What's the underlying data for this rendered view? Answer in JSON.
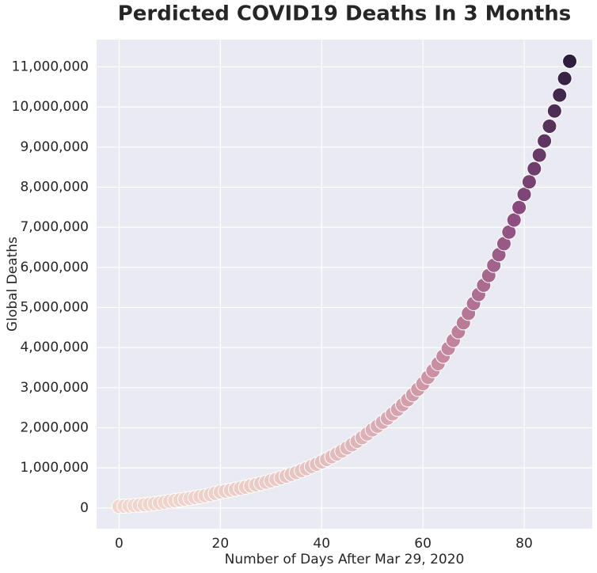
{
  "chart_data": {
    "type": "scatter",
    "title": "Perdicted COVID19 Deaths In 3 Months",
    "x_label": "Number of Days After Mar 29, 2020",
    "y_label": "Global Deaths",
    "x": [
      0,
      1,
      2,
      3,
      4,
      5,
      6,
      7,
      8,
      9,
      10,
      11,
      12,
      13,
      14,
      15,
      16,
      17,
      18,
      19,
      20,
      21,
      22,
      23,
      24,
      25,
      26,
      27,
      28,
      29,
      30,
      31,
      32,
      33,
      34,
      35,
      36,
      37,
      38,
      39,
      40,
      41,
      42,
      43,
      44,
      45,
      46,
      47,
      48,
      49,
      50,
      51,
      52,
      53,
      54,
      55,
      56,
      57,
      58,
      59,
      60,
      61,
      62,
      63,
      64,
      65,
      66,
      67,
      68,
      69,
      70,
      71,
      72,
      73,
      74,
      75,
      76,
      77,
      78,
      79,
      80,
      81,
      82,
      83,
      84,
      85,
      86,
      87,
      88,
      89
    ],
    "values": [
      40000,
      46200,
      53400,
      61700,
      71300,
      82400,
      95300,
      110100,
      127200,
      147100,
      170000,
      185200,
      201700,
      219700,
      239300,
      260700,
      284000,
      309300,
      336900,
      367000,
      400000,
      421800,
      444800,
      469100,
      494600,
      521600,
      550000,
      580000,
      611600,
      645000,
      680000,
      716700,
      755400,
      796200,
      839200,
      884500,
      932300,
      982600,
      1035700,
      1091600,
      1150000,
      1212000,
      1278000,
      1347000,
      1420000,
      1497000,
      1578000,
      1664000,
      1754000,
      1849000,
      1950000,
      2043000,
      2140000,
      2241000,
      2348000,
      2459000,
      2576000,
      2698000,
      2826000,
      2961000,
      3100000,
      3258000,
      3425000,
      3600000,
      3784000,
      3977000,
      4180000,
      4394000,
      4618000,
      4854000,
      5100000,
      5323000,
      5555000,
      5798000,
      6051000,
      6316000,
      6592000,
      6880000,
      7181000,
      7495000,
      7820000,
      8134000,
      8460000,
      8799000,
      9152000,
      9519000,
      9900000,
      10297000,
      10710000,
      11140000
    ],
    "colormap": [
      "#f0d6cd",
      "#c88aa0",
      "#8a4a7f",
      "#2d1e3e"
    ],
    "xlim": [
      -4.45,
      93.45
    ],
    "ylim": [
      -515000,
      11680000
    ],
    "xticks": [
      0,
      20,
      40,
      60,
      80
    ],
    "yticks": [
      0,
      {
        "value": 1000000,
        "label": "1,000,000"
      },
      {
        "value": 2000000,
        "label": "2,000,000"
      },
      {
        "value": 3000000,
        "label": "3,000,000"
      },
      {
        "value": 4000000,
        "label": "4,000,000"
      },
      {
        "value": 5000000,
        "label": "5,000,000"
      },
      {
        "value": 6000000,
        "label": "6,000,000"
      },
      {
        "value": 7000000,
        "label": "7,000,000"
      },
      {
        "value": 8000000,
        "label": "8,000,000"
      },
      {
        "value": 9000000,
        "label": "9,000,000"
      },
      {
        "value": 10000000,
        "label": "10,000,000"
      },
      {
        "value": 11000000,
        "label": "11,000,000"
      }
    ],
    "grid": true
  }
}
